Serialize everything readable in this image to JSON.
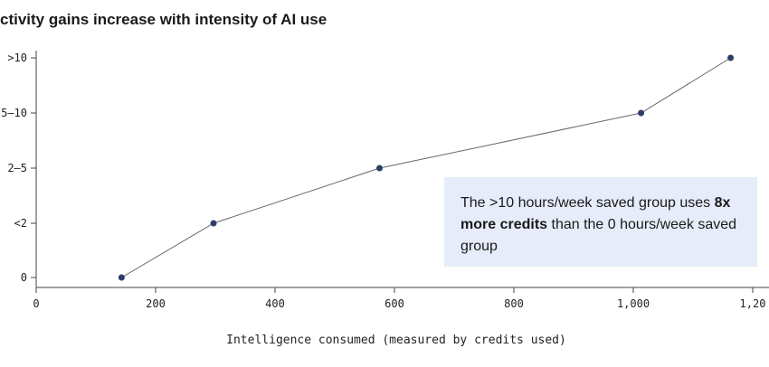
{
  "chart_data": {
    "type": "line",
    "title": "ctivity gains increase with intensity of AI use",
    "xlabel": "Intelligence consumed (measured by credits used)",
    "ylabel": "",
    "xlim": [
      0,
      1200
    ],
    "x_ticks": [
      "0",
      "200",
      "400",
      "600",
      "800",
      "1,000",
      "1,20"
    ],
    "y_categories": [
      "0",
      "<2",
      "2–5",
      "5–10",
      ">10"
    ],
    "y_tick_labels": [
      "0",
      "<2",
      "2–5",
      "5–10",
      ">10"
    ],
    "series": [
      {
        "x": [
          143,
          297,
          575,
          1013,
          1163
        ],
        "y": [
          "0",
          "<2",
          "2–5",
          "5–10",
          ">10"
        ]
      }
    ],
    "grid": false,
    "annotation": {
      "pre": "The >10 hours/week saved group uses",
      "bold": "8x more credits",
      "post": "than the 0 hours/week saved group"
    },
    "colors": {
      "line": "#666666",
      "marker": "#2d3e66",
      "box": "#e6ecfa"
    }
  }
}
